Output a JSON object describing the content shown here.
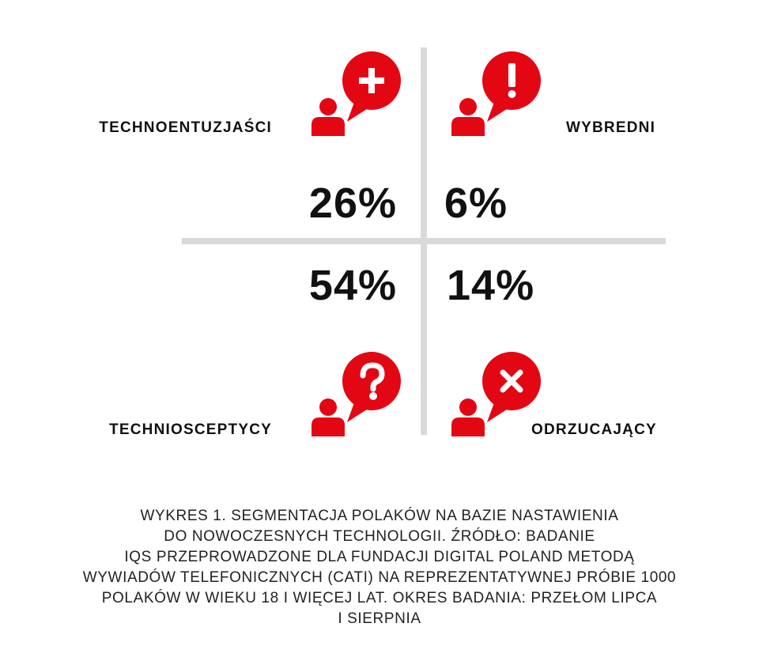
{
  "colors": {
    "accent": "#e30613",
    "divider": "#d9d9d9",
    "text": "#111111"
  },
  "chart_data": {
    "type": "table",
    "title": "",
    "segments": [
      {
        "name": "TECHNOENTUZJAŚCI",
        "value": 26,
        "label": "26%",
        "position": "top-left",
        "icon": "plus-icon"
      },
      {
        "name": "WYBREDNI",
        "value": 6,
        "label": "6%",
        "position": "top-right",
        "icon": "exclamation-icon"
      },
      {
        "name": "TECHNIOSCEPTYCY",
        "value": 54,
        "label": "54%",
        "position": "bottom-left",
        "icon": "question-icon"
      },
      {
        "name": "ODRZUCAJĄCY",
        "value": 14,
        "label": "14%",
        "position": "bottom-right",
        "icon": "cross-icon"
      }
    ]
  },
  "caption": {
    "lines": [
      "WYKRES 1. SEGMENTACJA POLAKÓW NA BAZIE NASTAWIENIA",
      "DO NOWOCZESNYCH TECHNOLOGII. ŹRÓDŁO: BADANIE",
      "IQS PRZEPROWADZONE DLA FUNDACJI DIGITAL POLAND METODĄ",
      "WYWIADÓW TELEFONICZNYCH (CATI) NA REPREZENTATYWNEJ PRÓBIE 1000",
      "POLAKÓW W WIEKU 18 I WIĘCEJ LAT. OKRES BADANIA: PRZEŁOM LIPCA",
      "I SIERPNIA"
    ]
  }
}
